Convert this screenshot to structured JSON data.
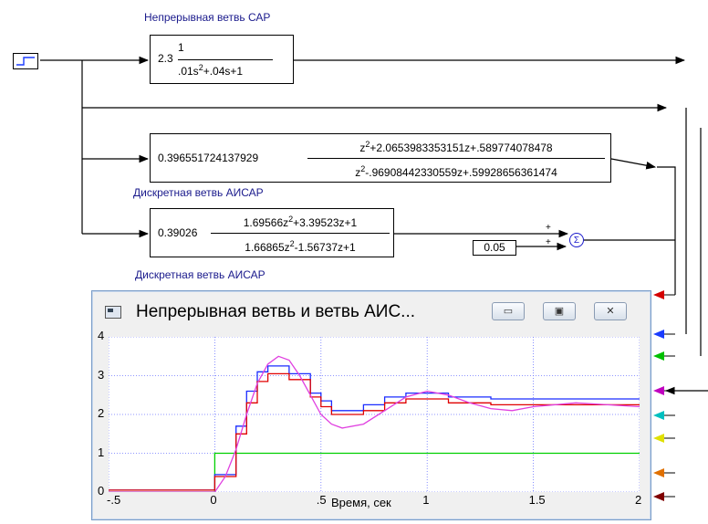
{
  "labels": {
    "continuous_branch": "Непрерывная ветвь САР",
    "discrete_branch_1": "Дискретная ветвь АИСАР",
    "discrete_branch_2": "Дискретная ветвь АИСАР"
  },
  "blocks": {
    "continuous": {
      "gain": "2.3",
      "num": "1",
      "den_html": ".01s²+.04s+1",
      "den_a": ".01s",
      "den_b": "2",
      "den_c": "+.04s+1"
    },
    "discrete1": {
      "gain": "0.396551724137929",
      "num_a": "z",
      "num_b": "2",
      "num_c": "+2.0653983353151z+.589774078478",
      "den_a": "z",
      "den_b": "2",
      "den_c": "-.96908442330559z+.59928656361474"
    },
    "discrete2": {
      "gain": "0.39026",
      "num_a": "1.69566z",
      "num_b": "2",
      "num_c": "+3.39523z+1",
      "den_a": "1.66865z",
      "den_b": "2",
      "den_c": "-1.56737z+1"
    },
    "constant": "0.05",
    "sum_symbol": "Σ",
    "sum_sign_1": "+",
    "sum_sign_2": "+"
  },
  "scope": {
    "title": "Непрерывная ветвь и ветвь АИС...",
    "buttons": {
      "minimize": "▭",
      "restore": "▣",
      "close": "✕"
    },
    "port_colors": [
      "#d40000",
      "#1a3cff",
      "#00c000",
      "#c000c0",
      "#00c0c0",
      "#e0e000",
      "#e07000",
      "#800000"
    ]
  },
  "chart_data": {
    "type": "line",
    "xlabel": "Время, сек",
    "xlim": [
      -0.5,
      2
    ],
    "ylim": [
      0,
      4
    ],
    "x_ticks": [
      "-.5",
      "0",
      ".5",
      "1",
      "1.5",
      "2"
    ],
    "y_ticks": [
      "0",
      "1",
      "2",
      "3",
      "4"
    ],
    "grid": true,
    "series": [
      {
        "color": "#00d000",
        "kind": "step",
        "points": [
          [
            -0.5,
            0
          ],
          [
            0,
            0
          ],
          [
            0,
            1
          ],
          [
            2,
            1
          ]
        ]
      },
      {
        "color": "#1a2cff",
        "kind": "step",
        "points": [
          [
            -0.5,
            0.05
          ],
          [
            0,
            0.05
          ],
          [
            0,
            0.45
          ],
          [
            0.1,
            0.45
          ],
          [
            0.1,
            1.7
          ],
          [
            0.15,
            1.7
          ],
          [
            0.15,
            2.6
          ],
          [
            0.2,
            2.6
          ],
          [
            0.2,
            3.1
          ],
          [
            0.25,
            3.1
          ],
          [
            0.25,
            3.25
          ],
          [
            0.35,
            3.25
          ],
          [
            0.35,
            3.05
          ],
          [
            0.45,
            3.05
          ],
          [
            0.45,
            2.55
          ],
          [
            0.5,
            2.55
          ],
          [
            0.5,
            2.35
          ],
          [
            0.55,
            2.35
          ],
          [
            0.55,
            2.1
          ],
          [
            0.7,
            2.1
          ],
          [
            0.7,
            2.25
          ],
          [
            0.8,
            2.25
          ],
          [
            0.8,
            2.45
          ],
          [
            0.9,
            2.45
          ],
          [
            0.9,
            2.55
          ],
          [
            1.1,
            2.55
          ],
          [
            1.1,
            2.45
          ],
          [
            1.3,
            2.45
          ],
          [
            1.3,
            2.4
          ],
          [
            2,
            2.4
          ]
        ]
      },
      {
        "color": "#e00000",
        "kind": "step",
        "points": [
          [
            -0.5,
            0.05
          ],
          [
            0,
            0.05
          ],
          [
            0,
            0.4
          ],
          [
            0.1,
            0.4
          ],
          [
            0.1,
            1.5
          ],
          [
            0.15,
            1.5
          ],
          [
            0.15,
            2.3
          ],
          [
            0.2,
            2.3
          ],
          [
            0.2,
            2.85
          ],
          [
            0.25,
            2.85
          ],
          [
            0.25,
            3.05
          ],
          [
            0.35,
            3.05
          ],
          [
            0.35,
            2.9
          ],
          [
            0.45,
            2.9
          ],
          [
            0.45,
            2.45
          ],
          [
            0.5,
            2.45
          ],
          [
            0.5,
            2.2
          ],
          [
            0.55,
            2.2
          ],
          [
            0.55,
            2.0
          ],
          [
            0.7,
            2.0
          ],
          [
            0.7,
            2.1
          ],
          [
            0.8,
            2.1
          ],
          [
            0.8,
            2.3
          ],
          [
            0.9,
            2.3
          ],
          [
            0.9,
            2.4
          ],
          [
            1.1,
            2.4
          ],
          [
            1.1,
            2.3
          ],
          [
            1.3,
            2.3
          ],
          [
            1.3,
            2.25
          ],
          [
            2,
            2.25
          ]
        ]
      },
      {
        "color": "#e040e0",
        "kind": "line",
        "points": [
          [
            -0.5,
            0
          ],
          [
            0,
            0
          ],
          [
            0.05,
            0.4
          ],
          [
            0.1,
            1.1
          ],
          [
            0.15,
            2.0
          ],
          [
            0.2,
            2.8
          ],
          [
            0.25,
            3.3
          ],
          [
            0.3,
            3.5
          ],
          [
            0.35,
            3.4
          ],
          [
            0.4,
            3.0
          ],
          [
            0.45,
            2.5
          ],
          [
            0.5,
            2.0
          ],
          [
            0.55,
            1.75
          ],
          [
            0.6,
            1.65
          ],
          [
            0.7,
            1.75
          ],
          [
            0.8,
            2.1
          ],
          [
            0.9,
            2.45
          ],
          [
            1.0,
            2.6
          ],
          [
            1.1,
            2.5
          ],
          [
            1.2,
            2.3
          ],
          [
            1.3,
            2.15
          ],
          [
            1.4,
            2.1
          ],
          [
            1.5,
            2.2
          ],
          [
            1.7,
            2.3
          ],
          [
            2,
            2.2
          ]
        ]
      }
    ]
  }
}
